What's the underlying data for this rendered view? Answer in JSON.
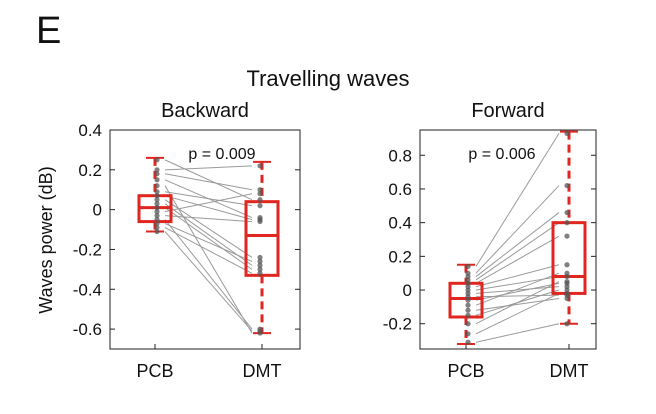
{
  "panel_letter": "E",
  "figure_title": "Travelling waves",
  "chart_data": [
    {
      "type": "box-paired",
      "title": "Backward",
      "ylabel": "Waves power (dB)",
      "categories": [
        "PCB",
        "DMT"
      ],
      "ylim": [
        -0.7,
        0.4
      ],
      "yticks": [
        "0.4",
        "0.2",
        "0",
        "-0.2",
        "-0.4",
        "-0.6"
      ],
      "annotation": "p = 0.009",
      "box_color": "#e0261f",
      "boxes": [
        {
          "name": "PCB",
          "min": -0.11,
          "q1": -0.06,
          "median": 0.01,
          "q3": 0.07,
          "max": 0.26
        },
        {
          "name": "DMT",
          "min": -0.62,
          "q1": -0.33,
          "median": -0.13,
          "q3": 0.04,
          "max": 0.24
        }
      ],
      "pairs": [
        [
          0.25,
          0.05
        ],
        [
          0.2,
          0.22
        ],
        [
          0.18,
          0.1
        ],
        [
          0.15,
          -0.04
        ],
        [
          0.12,
          -0.62
        ],
        [
          0.09,
          0.02
        ],
        [
          0.07,
          -0.05
        ],
        [
          0.05,
          -0.24
        ],
        [
          0.03,
          -0.28
        ],
        [
          0.01,
          -0.3
        ],
        [
          -0.01,
          0.08
        ],
        [
          -0.03,
          -0.06
        ],
        [
          -0.05,
          -0.6
        ],
        [
          -0.07,
          -0.26
        ],
        [
          -0.09,
          -0.32
        ],
        [
          -0.11,
          -0.61
        ]
      ]
    },
    {
      "type": "box-paired",
      "title": "Forward",
      "ylabel": "",
      "categories": [
        "PCB",
        "DMT"
      ],
      "ylim": [
        -0.35,
        0.95
      ],
      "yticks": [
        "0.8",
        "0.6",
        "0.4",
        "0.2",
        "0",
        "-0.2"
      ],
      "annotation": "p = 0.006",
      "box_color": "#e0261f",
      "boxes": [
        {
          "name": "PCB",
          "min": -0.32,
          "q1": -0.16,
          "median": -0.05,
          "q3": 0.04,
          "max": 0.15
        },
        {
          "name": "DMT",
          "min": -0.2,
          "q1": -0.02,
          "median": 0.08,
          "q3": 0.4,
          "max": 0.94
        }
      ],
      "pairs": [
        [
          0.14,
          0.93
        ],
        [
          0.1,
          0.62
        ],
        [
          0.08,
          0.46
        ],
        [
          0.06,
          0.4
        ],
        [
          0.04,
          0.32
        ],
        [
          0.02,
          0.15
        ],
        [
          0.0,
          0.08
        ],
        [
          -0.02,
          0.02
        ],
        [
          -0.04,
          -0.03
        ],
        [
          -0.06,
          0.04
        ],
        [
          -0.09,
          0.1
        ],
        [
          -0.12,
          -0.05
        ],
        [
          -0.15,
          0.0
        ],
        [
          -0.2,
          0.05
        ],
        [
          -0.26,
          -0.02
        ],
        [
          -0.31,
          -0.2
        ]
      ]
    }
  ]
}
